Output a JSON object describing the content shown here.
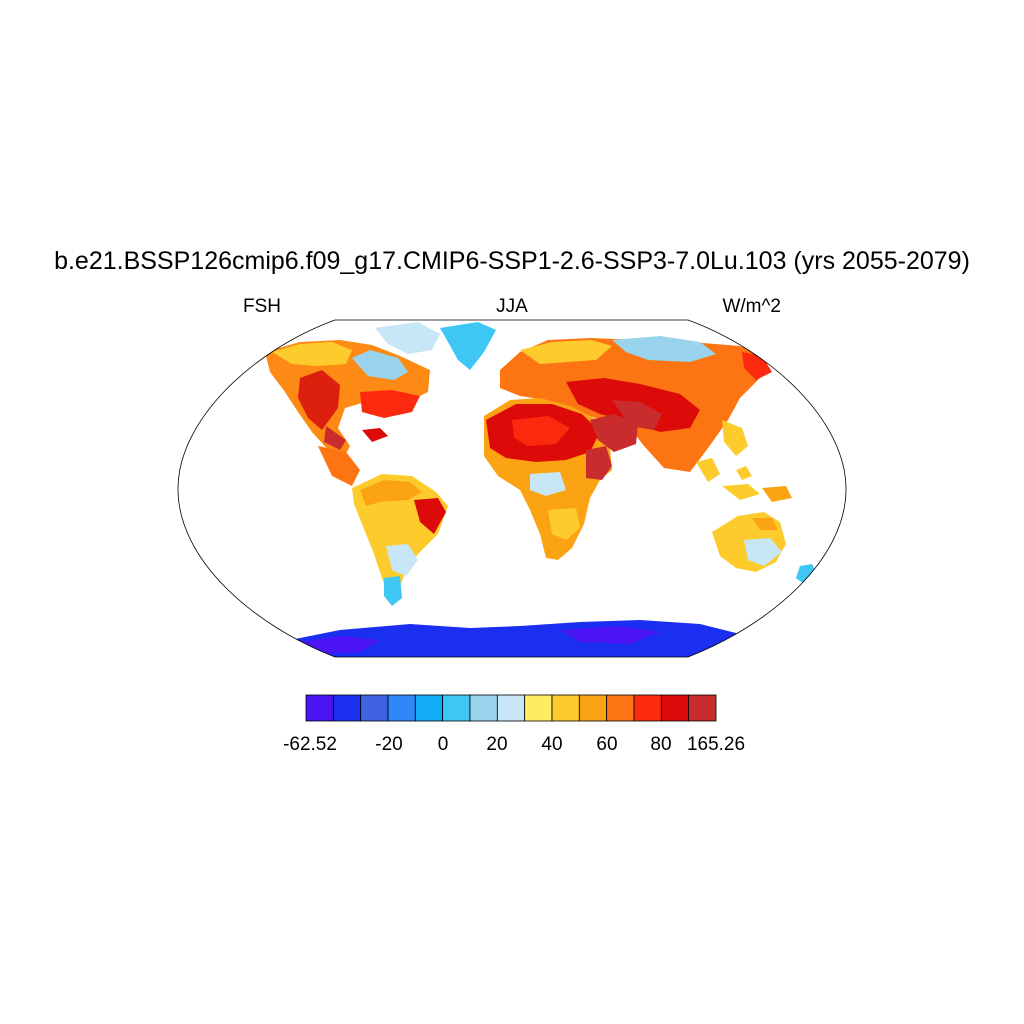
{
  "title": "b.e21.BSSP126cmip6.f09_g17.CMIP6-SSP1-2.6-SSP3-7.0Lu.103 (yrs 2055-2079)",
  "left_string": "FSH",
  "center_string": "JJA",
  "right_string": "W/m^2",
  "colorbar": {
    "colors": [
      "#4b14f5",
      "#1a2ff0",
      "#3f63e0",
      "#2f88f5",
      "#12acf5",
      "#3ec6f5",
      "#9ad3ee",
      "#c7e6f6",
      "#fced63",
      "#fdcc2c",
      "#fca314",
      "#fd7512",
      "#fb2a0e",
      "#dd0a0a",
      "#c92c2c"
    ],
    "labels": [
      "-62.52",
      "-20",
      "0",
      "20",
      "40",
      "60",
      "80",
      "165.26"
    ]
  }
}
